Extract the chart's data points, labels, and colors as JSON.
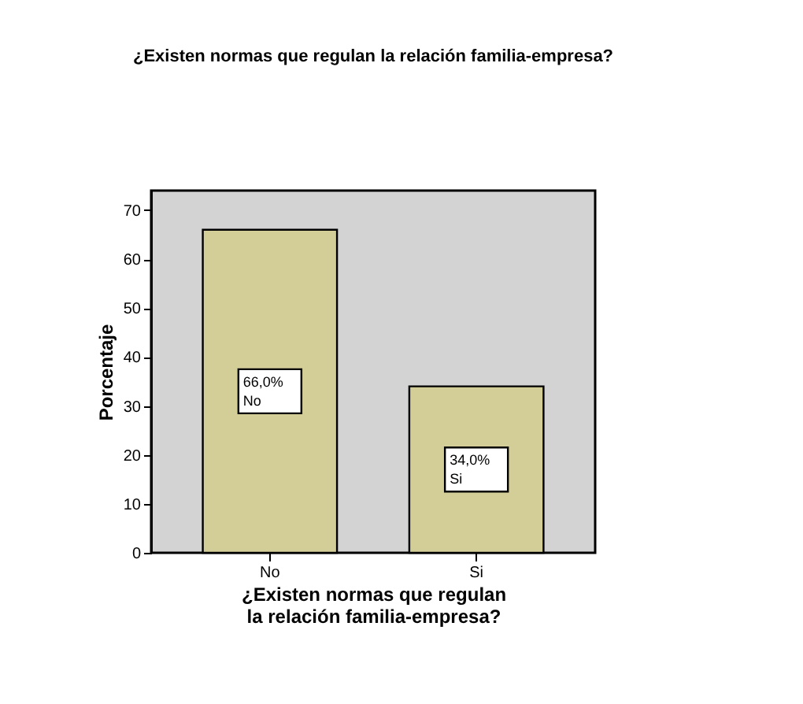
{
  "chart_data": {
    "type": "bar",
    "title": "¿Existen normas que regulan la relación familia-empresa?",
    "xlabel": "¿Existen normas que regulan la relación familia-empresa?",
    "ylabel": "Porcentaje",
    "categories": [
      "No",
      "Si"
    ],
    "values": [
      66.0,
      34.0
    ],
    "color": "#d3cd98",
    "value_labels": [
      "66,0%",
      "34,0%"
    ],
    "ylim": [
      0,
      74
    ],
    "yticks": [
      0,
      10,
      20,
      30,
      40,
      50,
      60,
      70
    ],
    "grid": false
  }
}
